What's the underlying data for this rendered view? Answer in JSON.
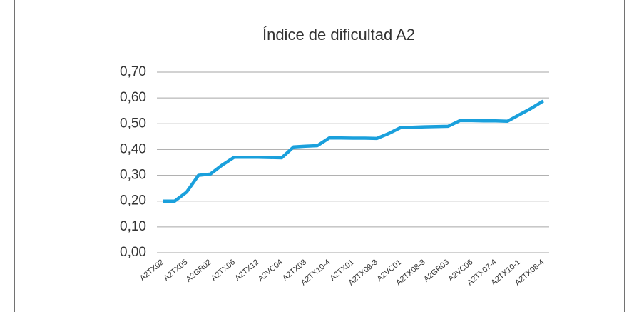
{
  "chart_data": {
    "type": "line",
    "title": "Índice de dificultad A2",
    "categories": [
      "A2TX02",
      null,
      "A2TX05",
      null,
      "A2GR02",
      null,
      "A2TX06",
      null,
      "A2TX12",
      null,
      "A2VC04",
      null,
      "A2TX03",
      null,
      "A2TX10-4",
      null,
      "A2TX01",
      null,
      "A2TX09-3",
      null,
      "A2VC01",
      null,
      "A2TX08-3",
      null,
      "A2GR03",
      null,
      "A2VC06",
      null,
      "A2TX07-4",
      null,
      "A2TX10-1",
      null,
      "A2TX08-4"
    ],
    "series": [
      {
        "name": "A2",
        "color": "#1aa0dc",
        "values": [
          0.2,
          0.2,
          0.235,
          0.3,
          0.305,
          0.34,
          0.37,
          0.37,
          0.37,
          0.369,
          0.368,
          0.41,
          0.413,
          0.415,
          0.445,
          0.445,
          0.444,
          0.444,
          0.443,
          0.462,
          0.485,
          0.486,
          0.488,
          0.489,
          0.49,
          0.512,
          0.512,
          0.511,
          0.511,
          0.51,
          0.535,
          0.56,
          0.588
        ]
      }
    ],
    "ylim": [
      0,
      0.7
    ],
    "yticks": [
      {
        "value": 0,
        "label": "0,00"
      },
      {
        "value": 0.1,
        "label": "0,10"
      },
      {
        "value": 0.2,
        "label": "0,20"
      },
      {
        "value": 0.3,
        "label": "0,30"
      },
      {
        "value": 0.4,
        "label": "0,40"
      },
      {
        "value": 0.5,
        "label": "0,50"
      },
      {
        "value": 0.6,
        "label": "0,60"
      },
      {
        "value": 0.7,
        "label": "0,70"
      }
    ],
    "grid": true
  }
}
